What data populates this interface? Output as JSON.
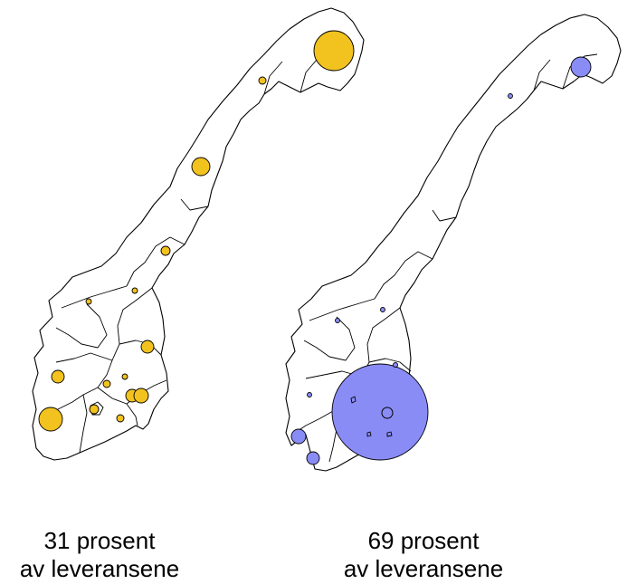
{
  "colors": {
    "left_bubbles": "#F2C21E",
    "right_bubbles": "#8A8CF6",
    "outline": "#000000",
    "background": "#FFFFFF"
  },
  "panels": [
    {
      "caption_line1": "31 prosent",
      "caption_line2": "av leveransene",
      "share_percent": 31
    },
    {
      "caption_line1": "69 prosent",
      "caption_line2": "av leveransene",
      "share_percent": 69
    }
  ]
}
